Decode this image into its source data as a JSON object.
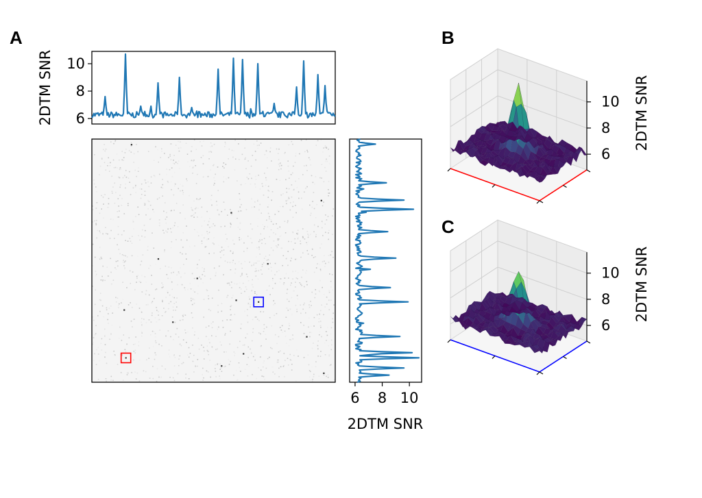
{
  "figure": {
    "panel_a_label": "A",
    "panel_b_label": "B",
    "panel_c_label": "C"
  },
  "chart_data": [
    {
      "id": "top-profile",
      "type": "line",
      "ylabel": "2DTM SNR",
      "ylim": [
        5.6,
        10.9
      ],
      "yticks": [
        6,
        8,
        10
      ],
      "color": "#1f77b4",
      "baseline": 6.2,
      "peaks": [
        {
          "x": 0.055,
          "y": 7.6
        },
        {
          "x": 0.14,
          "y": 10.7
        },
        {
          "x": 0.2,
          "y": 6.9
        },
        {
          "x": 0.27,
          "y": 8.6
        },
        {
          "x": 0.36,
          "y": 9.0
        },
        {
          "x": 0.41,
          "y": 6.8
        },
        {
          "x": 0.52,
          "y": 9.6
        },
        {
          "x": 0.58,
          "y": 10.4
        },
        {
          "x": 0.62,
          "y": 10.3
        },
        {
          "x": 0.68,
          "y": 10.0
        },
        {
          "x": 0.75,
          "y": 7.1
        },
        {
          "x": 0.84,
          "y": 8.3
        },
        {
          "x": 0.87,
          "y": 10.2
        },
        {
          "x": 0.93,
          "y": 9.2
        },
        {
          "x": 0.96,
          "y": 8.4
        }
      ]
    },
    {
      "id": "side-profile",
      "type": "line",
      "xlabel": "2DTM SNR",
      "xlim": [
        5.6,
        10.9
      ],
      "xticks": [
        6,
        8,
        10
      ],
      "color": "#1f77b4",
      "baseline": 6.2,
      "peaks": [
        {
          "y": 0.02,
          "x": 7.5
        },
        {
          "y": 0.18,
          "x": 8.3
        },
        {
          "y": 0.25,
          "x": 9.6
        },
        {
          "y": 0.29,
          "x": 10.3
        },
        {
          "y": 0.38,
          "x": 8.4
        },
        {
          "y": 0.49,
          "x": 9.0
        },
        {
          "y": 0.61,
          "x": 8.6
        },
        {
          "y": 0.67,
          "x": 9.9
        },
        {
          "y": 0.81,
          "x": 9.3
        },
        {
          "y": 0.88,
          "x": 10.2
        },
        {
          "y": 0.9,
          "x": 10.7
        },
        {
          "y": 0.94,
          "x": 9.6
        },
        {
          "y": 0.97,
          "x": 8.5
        }
      ]
    },
    {
      "id": "snr-map",
      "type": "heatmap",
      "colormap": "gray_r",
      "markers": [
        {
          "color": "#ff0000",
          "x": 0.14,
          "y": 0.9
        },
        {
          "color": "#0000ff",
          "x": 0.685,
          "y": 0.67
        }
      ]
    },
    {
      "id": "surface-b",
      "type": "surface",
      "zlabel": "2DTM SNR",
      "zticks": [
        6,
        8,
        10
      ],
      "axis_color": "#ff0000",
      "peak": 11.0
    },
    {
      "id": "surface-c",
      "type": "surface",
      "zlabel": "2DTM SNR",
      "zticks": [
        6,
        8,
        10
      ],
      "axis_color": "#0000ff",
      "peak": 10.3
    }
  ]
}
